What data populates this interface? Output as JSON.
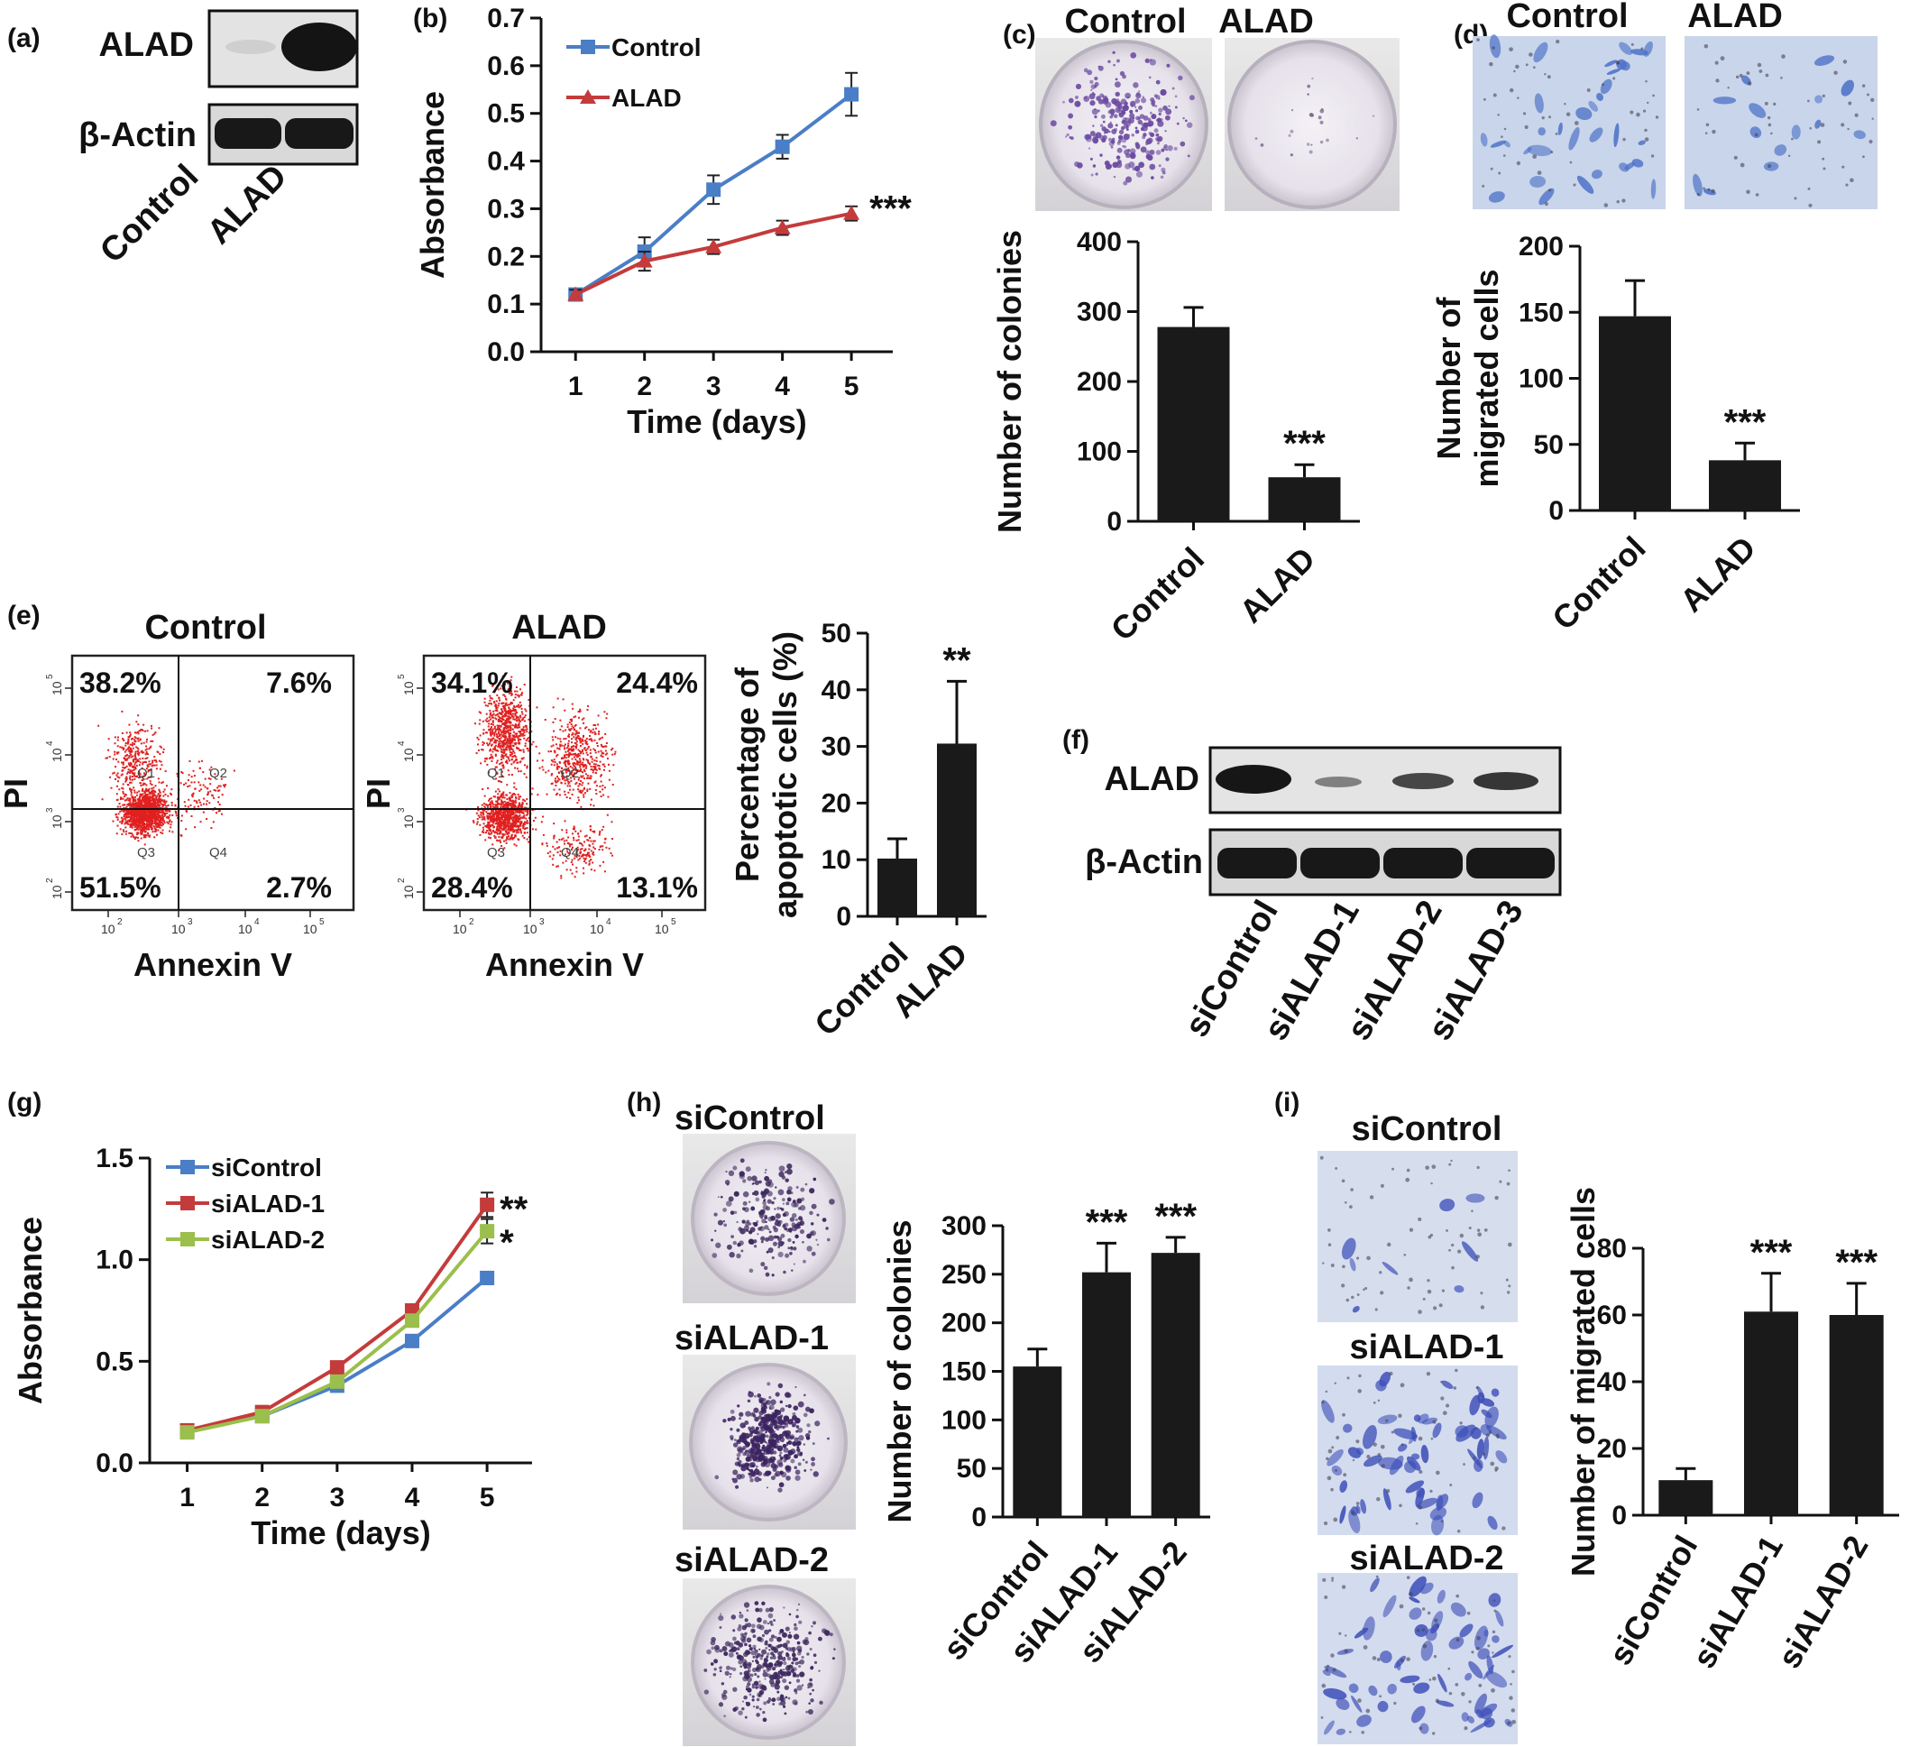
{
  "colors": {
    "blue": "#4a7ec6",
    "red": "#c43b3b",
    "green": "#9bbf4c",
    "bar": "#1a1a1a",
    "scatter": "#e02020",
    "stain": "#5a3a8a",
    "cell": "#4e6fc6"
  },
  "panel_labels": {
    "a": "(a)",
    "b": "(b)",
    "c": "(c)",
    "d": "(d)",
    "e": "(e)",
    "f": "(f)",
    "g": "(g)",
    "h": "(h)",
    "i": "(i)"
  },
  "panel_a": {
    "rows": [
      "ALAD",
      "β-Actin"
    ],
    "lanes": [
      "Control",
      "ALAD"
    ]
  },
  "panel_c": {
    "image_labels": [
      "Control",
      "ALAD"
    ]
  },
  "panel_d": {
    "image_labels": [
      "Control",
      "ALAD"
    ]
  },
  "panel_e": {
    "plots": [
      {
        "title": "Control",
        "quadrants": [
          "38.2%",
          "7.6%",
          "51.5%",
          "2.7%"
        ]
      },
      {
        "title": "ALAD",
        "quadrants": [
          "34.1%",
          "24.4%",
          "28.4%",
          "13.1%"
        ]
      }
    ],
    "gate_names": [
      "Q1",
      "Q2",
      "Q3",
      "Q4"
    ],
    "xlabel": "Annexin V",
    "ylabel": "PI",
    "log_ticks": [
      "10",
      "2",
      "3",
      "4",
      "5"
    ]
  },
  "panel_f": {
    "rows": [
      "ALAD",
      "β-Actin"
    ],
    "lanes": [
      "siControl",
      "siALAD-1",
      "siALAD-2",
      "siALAD-3"
    ]
  },
  "panel_h": {
    "image_labels": [
      "siControl",
      "siALAD-1",
      "siALAD-2"
    ]
  },
  "panel_i": {
    "image_labels": [
      "siControl",
      "siALAD-1",
      "siALAD-2"
    ]
  },
  "chart_data": [
    {
      "id": "b",
      "type": "line",
      "xlabel": "Time (days)",
      "ylabel": "Absorbance",
      "x": [
        1,
        2,
        3,
        4,
        5
      ],
      "xlim": [
        0.5,
        5.6
      ],
      "ylim": [
        0,
        0.7
      ],
      "yticks": [
        0,
        0.1,
        0.2,
        0.3,
        0.4,
        0.5,
        0.6,
        0.7
      ],
      "ytick_decimals": 1,
      "legend": "top-left",
      "series": [
        {
          "name": "Control",
          "color": "#4a7ec6",
          "marker": "square",
          "values": [
            0.12,
            0.21,
            0.34,
            0.43,
            0.54
          ],
          "errors": [
            0.01,
            0.03,
            0.03,
            0.025,
            0.045
          ]
        },
        {
          "name": "ALAD",
          "color": "#c43b3b",
          "marker": "triangle",
          "values": [
            0.12,
            0.19,
            0.22,
            0.26,
            0.29
          ],
          "errors": [
            0.01,
            0.02,
            0.015,
            0.015,
            0.015
          ]
        }
      ],
      "annotations": [
        "***"
      ]
    },
    {
      "id": "c",
      "type": "bar",
      "ylabel": "Number of colonies",
      "categories": [
        "Control",
        "ALAD"
      ],
      "values": [
        278,
        63
      ],
      "errors": [
        28,
        18
      ],
      "ylim": [
        0,
        400
      ],
      "yticks": [
        0,
        100,
        200,
        300,
        400
      ],
      "annotations": [
        "",
        "***"
      ]
    },
    {
      "id": "d",
      "type": "bar",
      "ylabel": "Number of\nmigrated cells",
      "categories": [
        "Control",
        "ALAD"
      ],
      "values": [
        147,
        38
      ],
      "errors": [
        27,
        13
      ],
      "ylim": [
        0,
        200
      ],
      "yticks": [
        0,
        50,
        100,
        150,
        200
      ],
      "annotations": [
        "",
        "***"
      ]
    },
    {
      "id": "e",
      "type": "bar",
      "ylabel": "Percentage of\napoptotic cells (%)",
      "categories": [
        "Control",
        "ALAD"
      ],
      "values": [
        10.2,
        30.5
      ],
      "errors": [
        3.5,
        11
      ],
      "ylim": [
        0,
        50
      ],
      "yticks": [
        0,
        10,
        20,
        30,
        40,
        50
      ],
      "annotations": [
        "",
        "**"
      ]
    },
    {
      "id": "g",
      "type": "line",
      "xlabel": "Time (days)",
      "ylabel": "Absorbance",
      "x": [
        1,
        2,
        3,
        4,
        5
      ],
      "xlim": [
        0.5,
        5.6
      ],
      "ylim": [
        0,
        1.5
      ],
      "yticks": [
        0,
        0.5,
        1.0,
        1.5
      ],
      "ytick_decimals": 1,
      "legend": "top-left",
      "series": [
        {
          "name": "siControl",
          "color": "#4a7ec6",
          "marker": "square",
          "values": [
            0.16,
            0.23,
            0.38,
            0.6,
            0.91
          ],
          "errors": [
            0.02,
            0.02,
            0.02,
            0.03,
            0.03
          ]
        },
        {
          "name": "siALAD-1",
          "color": "#c43b3b",
          "marker": "square",
          "values": [
            0.16,
            0.25,
            0.47,
            0.75,
            1.27
          ],
          "errors": [
            0.02,
            0.02,
            0.02,
            0.03,
            0.06
          ]
        },
        {
          "name": "siALAD-2",
          "color": "#9bbf4c",
          "marker": "square",
          "values": [
            0.15,
            0.23,
            0.4,
            0.7,
            1.14
          ],
          "errors": [
            0.02,
            0.02,
            0.02,
            0.03,
            0.06
          ]
        }
      ],
      "annotations": [
        "**",
        "*"
      ]
    },
    {
      "id": "h",
      "type": "bar",
      "ylabel": "Number of colonies",
      "categories": [
        "siControl",
        "siALAD-1",
        "siALAD-2"
      ],
      "values": [
        155,
        252,
        272
      ],
      "errors": [
        18,
        30,
        16
      ],
      "ylim": [
        0,
        300
      ],
      "yticks": [
        0,
        50,
        100,
        150,
        200,
        250,
        300
      ],
      "annotations": [
        "",
        "***",
        "***"
      ]
    },
    {
      "id": "i",
      "type": "bar",
      "ylabel": "Number of migrated cells",
      "categories": [
        "siControl",
        "siALAD-1",
        "siALAD-2"
      ],
      "values": [
        10.5,
        61,
        60
      ],
      "errors": [
        3.5,
        11.5,
        9.5
      ],
      "ylim": [
        0,
        80
      ],
      "yticks": [
        0,
        20,
        40,
        60,
        80
      ],
      "annotations": [
        "",
        "***",
        "***"
      ]
    }
  ]
}
